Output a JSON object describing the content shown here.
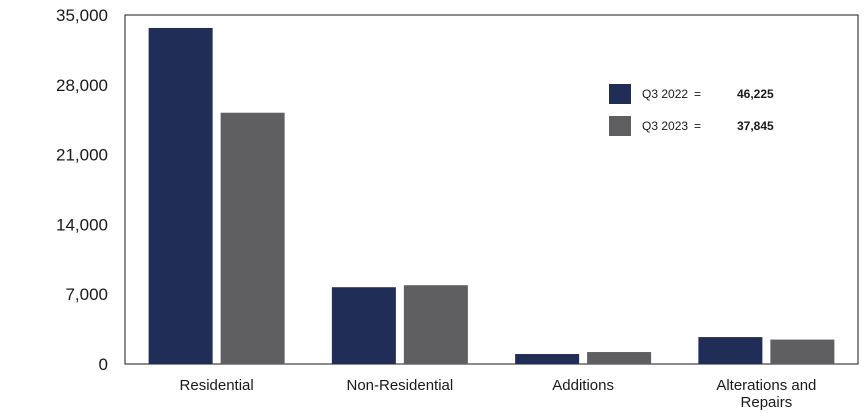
{
  "chart_data": {
    "type": "bar",
    "categories": [
      "Residential",
      "Non-Residential",
      "Additions",
      "Alterations and Repairs"
    ],
    "category_lines": [
      [
        "Residential"
      ],
      [
        "Non-Residential"
      ],
      [
        "Additions"
      ],
      [
        "Alterations and",
        "Repairs"
      ]
    ],
    "series": [
      {
        "name": "Q3 2022",
        "total": "46,225",
        "color": "#1f2d57",
        "values": [
          33700,
          7700,
          1000,
          2700
        ]
      },
      {
        "name": "Q3 2023",
        "total": "37,845",
        "color": "#5f5f61",
        "values": [
          25200,
          7900,
          1200,
          2450
        ]
      }
    ],
    "legend_separator": "=",
    "yticks": [
      "0",
      "7,000",
      "14,000",
      "21,000",
      "28,000",
      "35,000"
    ],
    "ylim": [
      0,
      35000
    ],
    "title": "",
    "xlabel": "",
    "ylabel": "",
    "grid": false,
    "legend_position": "top-right"
  }
}
